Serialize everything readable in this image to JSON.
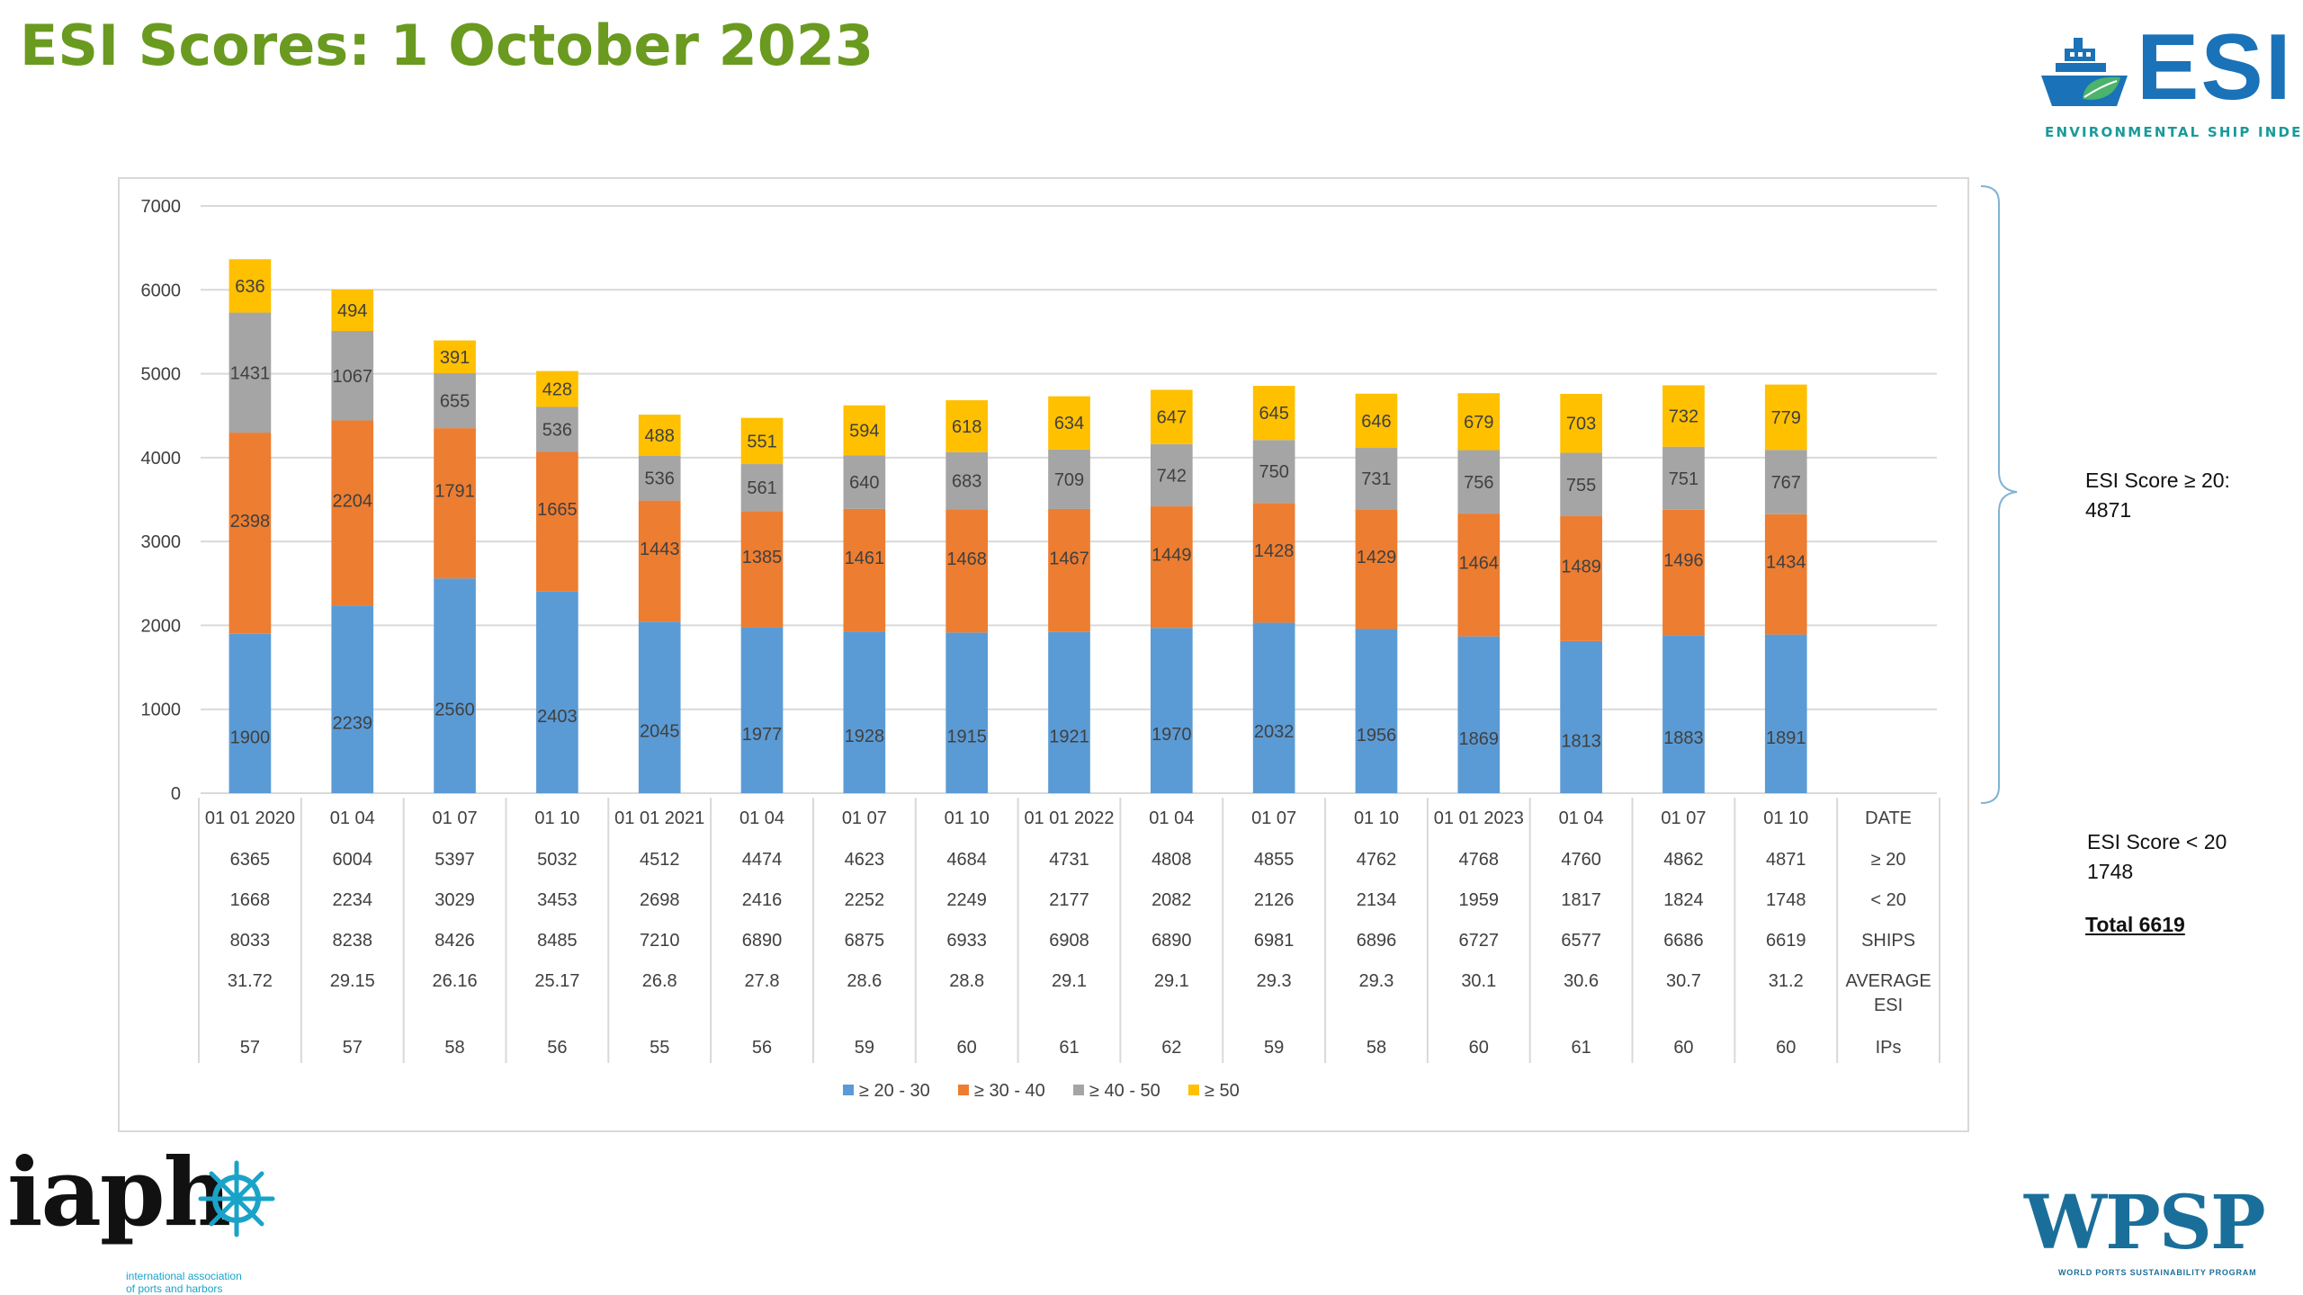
{
  "page": {
    "title": "ESI Scores: 1 October 2023",
    "logo_esi": {
      "word": "ESI",
      "tagline": "ENVIRONMENTAL SHIP INDEX",
      "icon": "ship-leaf-icon"
    },
    "logo_iaph": {
      "word": "iaph",
      "sub_line1": "international association",
      "sub_line2": "of ports and harbors",
      "icon": "ship-wheel-icon"
    },
    "logo_wpsp": {
      "word": "WPSP",
      "sub": "WORLD PORTS SUSTAINABILITY PROGRAM"
    },
    "notes": {
      "above_label": "ESI Score ≥ 20:",
      "above_value": "4871",
      "below_label": "ESI Score < 20",
      "below_value": "1748",
      "total": "Total 6619"
    }
  },
  "colors": {
    "s1": "#5b9bd5",
    "s2": "#ed7d31",
    "s3": "#a5a5a5",
    "s4": "#ffc000",
    "title": "#6a9a1f",
    "grid": "#d9d9d9",
    "label": "#404040"
  },
  "chart_data": {
    "type": "bar",
    "stacked": true,
    "categories": [
      "01 01 2020",
      "01 04",
      "01 07",
      "01 10",
      "01 01 2021",
      "01 04",
      "01 07",
      "01 10",
      "01 01 2022",
      "01 04",
      "01 07",
      "01 10",
      "01 01 2023",
      "01 04",
      "01 07",
      "01 10"
    ],
    "series": [
      {
        "name": "≥ 20 - 30",
        "color": "#5b9bd5",
        "values": [
          1900,
          2239,
          2560,
          2403,
          2045,
          1977,
          1928,
          1915,
          1921,
          1970,
          2032,
          1956,
          1869,
          1813,
          1883,
          1891
        ]
      },
      {
        "name": "≥ 30 - 40",
        "color": "#ed7d31",
        "values": [
          2398,
          2204,
          1791,
          1665,
          1443,
          1385,
          1461,
          1468,
          1467,
          1449,
          1428,
          1429,
          1464,
          1489,
          1496,
          1434
        ]
      },
      {
        "name": "≥ 40 - 50",
        "color": "#a5a5a5",
        "values": [
          1431,
          1067,
          655,
          536,
          536,
          561,
          640,
          683,
          709,
          742,
          750,
          731,
          756,
          755,
          751,
          767
        ]
      },
      {
        "name": "≥ 50",
        "color": "#ffc000",
        "values": [
          636,
          494,
          391,
          428,
          488,
          551,
          594,
          618,
          634,
          647,
          645,
          646,
          679,
          703,
          732,
          779
        ]
      }
    ],
    "ylim": [
      0,
      7000
    ],
    "yticks": [
      "0",
      "1000",
      "2000",
      "3000",
      "4000",
      "5000",
      "6000",
      "7000"
    ],
    "grid": true,
    "legend_position": "bottom",
    "table": {
      "rows": [
        {
          "header": "DATE",
          "values": [
            "01 01 2020",
            "01 04",
            "01 07",
            "01 10",
            "01 01 2021",
            "01 04",
            "01 07",
            "01 10",
            "01 01 2022",
            "01 04",
            "01 07",
            "01 10",
            "01 01 2023",
            "01 04",
            "01 07",
            "01 10"
          ]
        },
        {
          "header": "≥ 20",
          "values": [
            "6365",
            "6004",
            "5397",
            "5032",
            "4512",
            "4474",
            "4623",
            "4684",
            "4731",
            "4808",
            "4855",
            "4762",
            "4768",
            "4760",
            "4862",
            "4871"
          ]
        },
        {
          "header": "< 20",
          "values": [
            "1668",
            "2234",
            "3029",
            "3453",
            "2698",
            "2416",
            "2252",
            "2249",
            "2177",
            "2082",
            "2126",
            "2134",
            "1959",
            "1817",
            "1824",
            "1748"
          ]
        },
        {
          "header": "SHIPS",
          "values": [
            "8033",
            "8238",
            "8426",
            "8485",
            "7210",
            "6890",
            "6875",
            "6933",
            "6908",
            "6890",
            "6981",
            "6896",
            "6727",
            "6577",
            "6686",
            "6619"
          ]
        },
        {
          "header": "AVERAGE ESI",
          "values": [
            "31.72",
            "29.15",
            "26.16",
            "25.17",
            "26.8",
            "27.8",
            "28.6",
            "28.8",
            "29.1",
            "29.1",
            "29.3",
            "29.3",
            "30.1",
            "30.6",
            "30.7",
            "31.2"
          ]
        },
        {
          "header": "IPs",
          "values": [
            "57",
            "57",
            "58",
            "56",
            "55",
            "56",
            "59",
            "60",
            "61",
            "62",
            "59",
            "58",
            "60",
            "61",
            "60",
            "60"
          ]
        }
      ]
    }
  }
}
